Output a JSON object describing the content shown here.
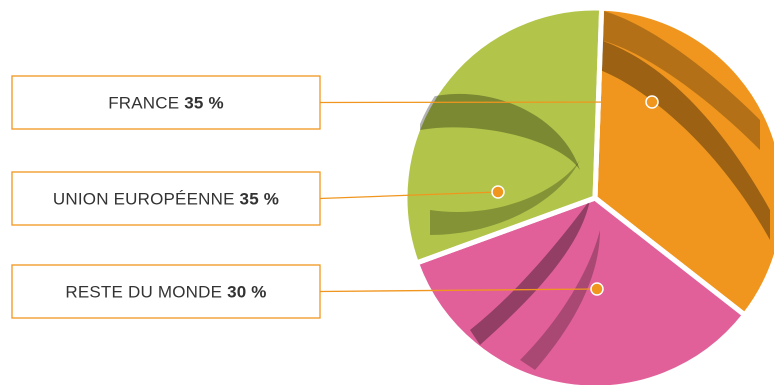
{
  "chart_data": {
    "type": "pie",
    "slices": [
      {
        "label": "FRANCE",
        "value": 35,
        "value_text": "35 %",
        "color": "#f0961e"
      },
      {
        "label": "RESTE DU MONDE",
        "value": 30,
        "value_text": "30 %",
        "color": "#e2609a"
      },
      {
        "label": "UNION EUROPÉENNE",
        "value": 35,
        "value_text": "35 %",
        "color": "#b2c54a"
      }
    ],
    "legend": "left",
    "line_color": "#f0961e"
  }
}
